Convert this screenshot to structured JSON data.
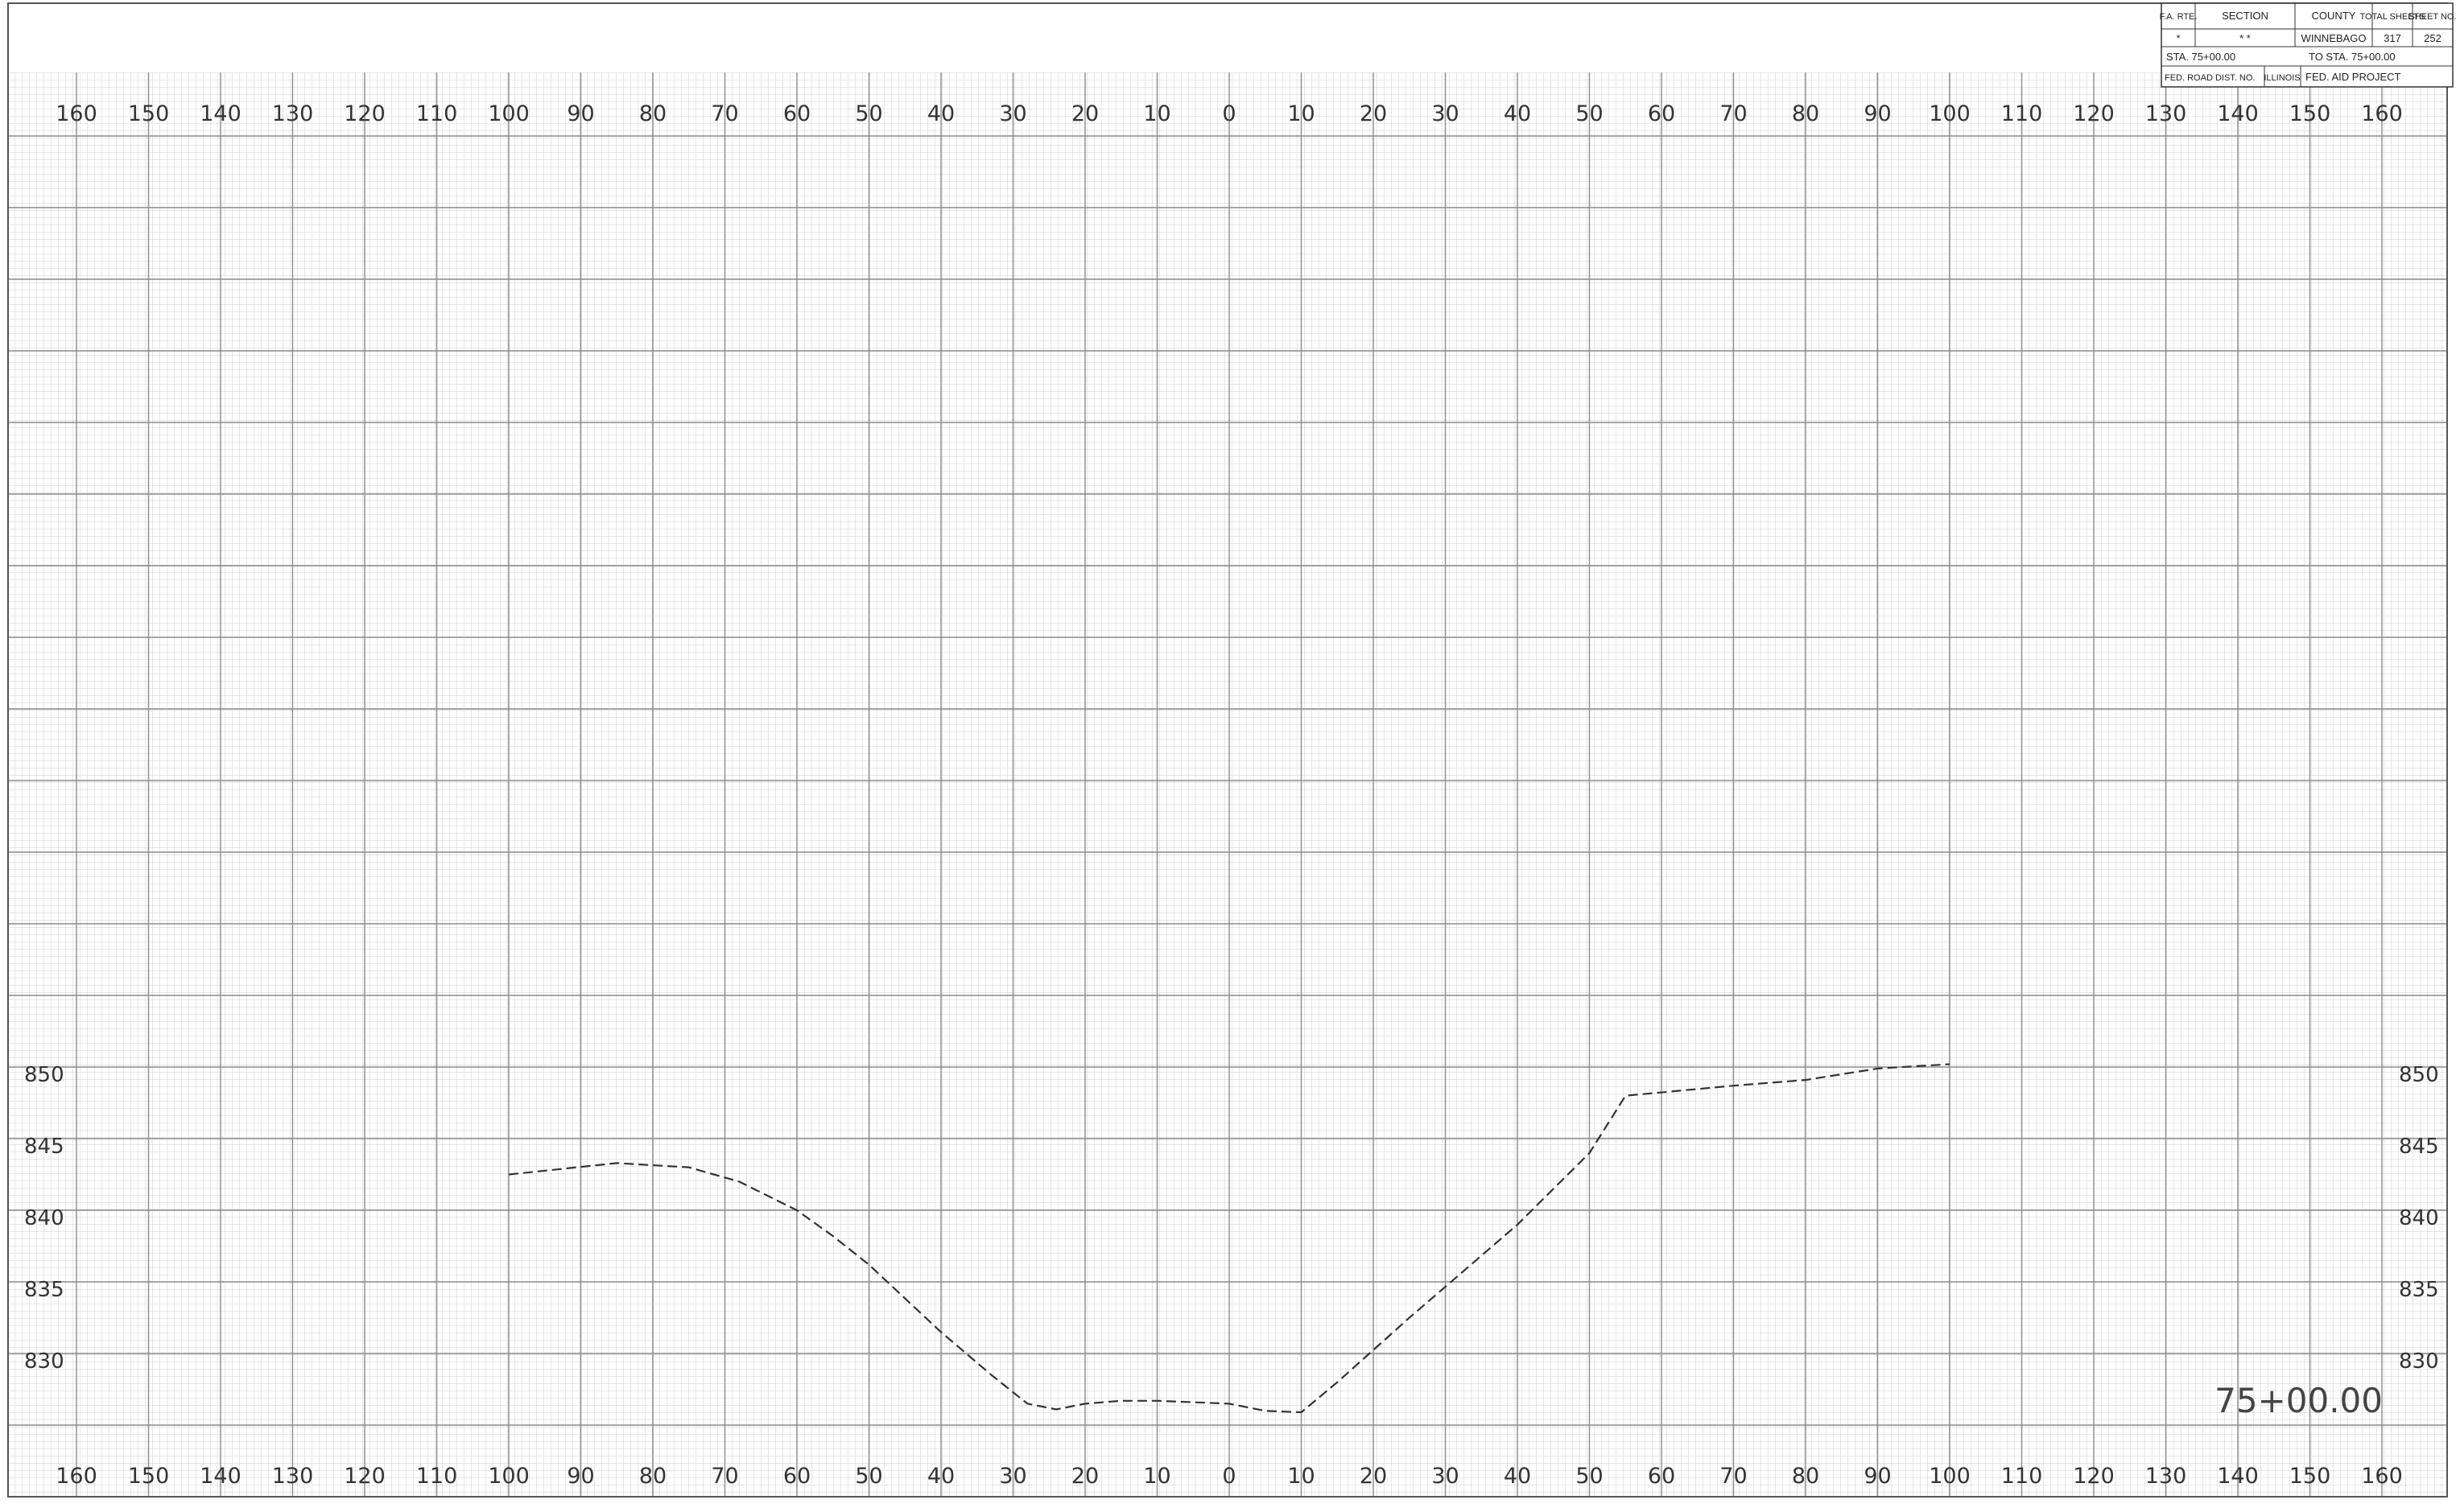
{
  "title_block": {
    "fa_rte_label": "F.A. RTE.",
    "section_label": "SECTION",
    "county_label": "COUNTY",
    "total_sheets_label": "TOTAL SHEETS",
    "sheet_no_label": "SHEET NO.",
    "fa_rte_value": "*",
    "section_value": "* *",
    "county_value": "WINNEBAGO",
    "total_sheets_value": "317",
    "sheet_no_value": "252",
    "sta_from": "STA. 75+00.00",
    "sta_to": "TO STA. 75+00.00",
    "fed_road_dist": "FED. ROAD DIST. NO.",
    "state": "ILLINOIS",
    "fed_aid_project": "FED. AID PROJECT"
  },
  "station_label": "75+00.00",
  "chart_data": {
    "type": "line",
    "x_tick_labels": [
      "160",
      "150",
      "140",
      "130",
      "120",
      "110",
      "100",
      "90",
      "80",
      "70",
      "60",
      "50",
      "40",
      "30",
      "20",
      "10",
      "0",
      "10",
      "20",
      "30",
      "40",
      "50",
      "60",
      "70",
      "80",
      "90",
      "100",
      "110",
      "120",
      "130",
      "140",
      "150",
      "160"
    ],
    "x_offsets": [
      -160,
      -150,
      -140,
      -130,
      -120,
      -110,
      -100,
      -90,
      -80,
      -70,
      -60,
      -50,
      -40,
      -30,
      -20,
      -10,
      0,
      10,
      20,
      30,
      40,
      50,
      60,
      70,
      80,
      90,
      100,
      110,
      120,
      130,
      140,
      150,
      160
    ],
    "y_tick_labels": [
      "850",
      "845",
      "840",
      "835",
      "830"
    ],
    "y_ticks": [
      850,
      845,
      840,
      835,
      830
    ],
    "xlim": [
      -170,
      170
    ],
    "ylim": [
      825,
      850
    ],
    "grid": true,
    "series": [
      {
        "line_style": "dashed",
        "x": [
          -100,
          -85,
          -75,
          -68,
          -60,
          -55,
          -50,
          -40,
          -33,
          -28,
          -24,
          -20,
          -15,
          -10,
          0,
          5,
          10,
          15,
          25,
          40,
          50,
          55,
          70,
          80,
          90,
          100
        ],
        "y": [
          843,
          843.8,
          843.5,
          842.5,
          840.5,
          838.7,
          836.7,
          832,
          829,
          827,
          826.6,
          827,
          827.2,
          827.2,
          827,
          826.5,
          826.4,
          828.5,
          833,
          839.5,
          844.5,
          848.5,
          849.2,
          849.6,
          850.4,
          850.7
        ]
      }
    ]
  }
}
